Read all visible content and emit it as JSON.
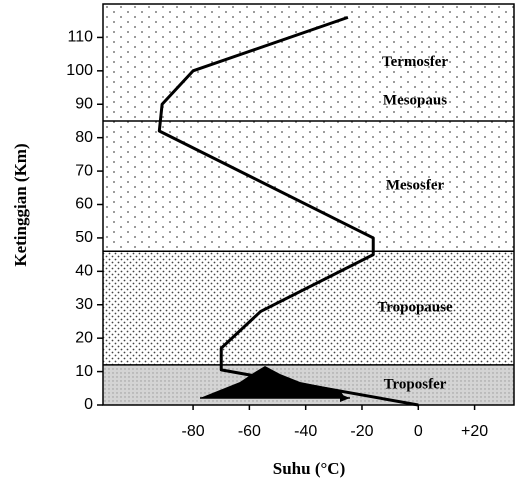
{
  "chart_data": {
    "type": "line",
    "x_label": "Suhu (°C)",
    "y_label": "Ketinggian (Km)",
    "x": [
      -25,
      -80,
      -91,
      -92,
      -16,
      -16,
      -56,
      -70,
      -70,
      0
    ],
    "values": [
      116,
      100,
      90,
      82,
      50,
      45,
      28,
      17,
      10.5,
      0
    ],
    "color": "#000000",
    "xlim": [
      -112,
      34
    ],
    "ylim": [
      0,
      120
    ],
    "xticks": [
      -80,
      -60,
      -40,
      -20,
      0,
      {
        "value": 20,
        "label": "+20"
      }
    ],
    "yticks": [
      0,
      10,
      20,
      30,
      40,
      50,
      60,
      70,
      80,
      90,
      100,
      110
    ],
    "layers": [
      {
        "name": "Troposfer",
        "bottom": 0,
        "top": 12
      },
      {
        "name": "Tropopause",
        "bottom": 12,
        "top": 46
      },
      {
        "name": "Mesosfer",
        "bottom": 46,
        "top": 85
      },
      {
        "name": "Termosfer",
        "bottom": 85,
        "top": 120
      }
    ],
    "boundary_label": {
      "value": 85,
      "label": "Mesopaus"
    }
  }
}
